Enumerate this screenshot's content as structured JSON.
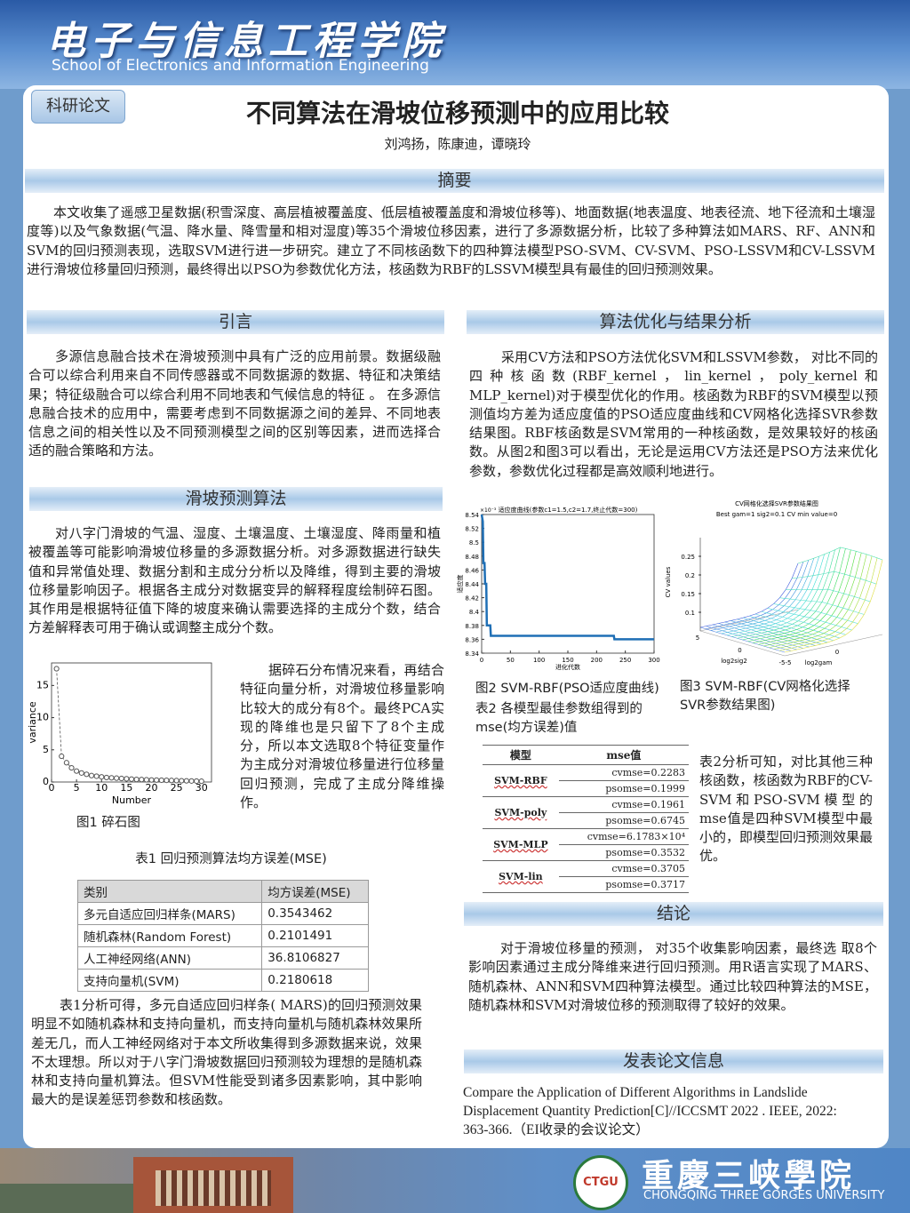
{
  "header": {
    "school_cn": "电子与信息工程学院",
    "school_en": "School of Electronics and Information Engineering"
  },
  "tag": "科研论文",
  "title": "不同算法在滑坡位移预测中的应用比较",
  "authors": "刘鸿扬，陈康迪，谭晓玲",
  "abstract": {
    "heading": "摘要",
    "text": "本文收集了遥感卫星数据(积雪深度、高层植被覆盖度、低层植被覆盖度和滑坡位移等)、地面数据(地表温度、地表径流、地下径流和土壤湿度等)以及气象数据(气温、降水量、降雪量和相对湿度)等35个滑坡位移因素，进行了多源数据分析，比较了多种算法如MARS、RF、ANN和SVM的回归预测表现，选取SVM进行进一步研究。建立了不同核函数下的四种算法模型PSO-SVM、CV-SVM、PSO-LSSVM和CV-LSSVM进行滑坡位移量回归预测，最终得出以PSO为参数优化方法，核函数为RBF的LSSVM模型具有最佳的回归预测效果。"
  },
  "intro": {
    "heading": "引言",
    "text": "多源信息融合技术在滑坡预测中具有广泛的应用前景。数据级融合可以综合利用来自不同传感器或不同数据源的数据、特征和决策结果；特征级融合可以综合利用不同地表和气候信息的特征 。 在多源信息融合技术的应用中，需要考虑到不同数据源之间的差异、不同地表信息之间的相关性以及不同预测模型之间的区别等因素，进而选择合适的融合策略和方法。"
  },
  "algorithm": {
    "heading": "滑坡预测算法",
    "text": "对八字门滑坡的气温、湿度、土壤温度、土壤湿度、降雨量和植被覆盖等可能影响滑坡位移量的多源数据分析。对多源数据进行缺失值和异常值处理、数据分割和主成分分析以及降维，得到主要的滑坡位移量影响因子。根据各主成分对数据变异的解释程度绘制碎石图。其作用是根据特征值下降的坡度来确认需要选择的主成分个数，结合方差解释表可用于确认或调整主成分个数。",
    "scree_text": "据碎石分布情况来看，再结合特征向量分析，对滑坡位移量影响比较大的成分有8个。最终PCA实现的降维也是只留下了8个主成分，所以本文选取8个特征变量作为主成分对滑坡位移量进行位移量回归预测，完成了主成分降维操作。",
    "figure1": {
      "type": "scatter",
      "x_label": "Number",
      "y_label": "variance",
      "x": [
        1,
        2,
        3,
        4,
        5,
        6,
        7,
        8,
        9,
        10,
        11,
        12,
        13,
        14,
        15,
        16,
        17,
        18,
        19,
        20,
        21,
        22,
        23,
        24,
        25,
        26,
        27,
        28,
        29,
        30
      ],
      "values": [
        17.6,
        4.0,
        3.0,
        2.2,
        1.7,
        1.4,
        1.2,
        1.0,
        0.9,
        0.8,
        0.7,
        0.65,
        0.6,
        0.55,
        0.5,
        0.45,
        0.4,
        0.38,
        0.35,
        0.32,
        0.3,
        0.28,
        0.26,
        0.24,
        0.22,
        0.2,
        0.18,
        0.16,
        0.14,
        0.12
      ],
      "xlim": [
        0,
        32
      ],
      "ylim": [
        0,
        18.5
      ],
      "xticks": [
        0,
        5,
        10,
        15,
        20,
        25,
        30
      ],
      "yticks": [
        0,
        5,
        10,
        15
      ],
      "color": "#555555"
    },
    "figure1_caption": "图1 碎石图",
    "table1_caption": "表1 回归预测算法均方误差(MSE)",
    "table1": {
      "header": [
        "类别",
        "均方误差(MSE)"
      ],
      "rows": [
        [
          "多元自适应回归样条(MARS)",
          0.3543462
        ],
        [
          "随机森林(Random Forest)",
          0.2101491
        ],
        [
          "人工神经网络(ANN)",
          36.8106827
        ],
        [
          "支持向量机(SVM)",
          0.2180618
        ]
      ]
    },
    "after_text": "表1分析可得，多元自适应回归样条( MARS)的回归预测效果明显不如随机森林和支持向量机，而支持向量机与随机森林效果所差无几，而人工神经网络对于本文所收集得到多源数据来说，效果不太理想。所以对于八字门滑坡数据回归预测较为理想的是随机森林和支持向量机算法。但SVM性能受到诸多因素影响，其中影响最大的是误差惩罚参数和核函数。"
  },
  "optimization": {
    "heading": "算法优化与结果分析",
    "text": "采用CV方法和PSO方法优化SVM和LSSVM参数， 对比不同的四种核函数(RBF_kernel，lin_kernel，poly_kernel和MLP_kernel)对于模型优化的作用。核函数为RBF的SVM模型以预测值均方差为适应度值的PSO适应度曲线和CV网格化选择SVR参数结果图。RBF核函数是SVM常用的一种核函数，是效果较好的核函数。从图2和图3可以看出，无论是运用CV方法还是PSO方法来优化参数，参数优化过程都是高效顺利地进行。",
    "figure2": {
      "type": "line",
      "title": "适应度曲线(参数c1=1.5,c2=1.7,终止代数=300)",
      "y_exponent": "×10⁻³",
      "x_label": "进化代数",
      "y_label": "适应度",
      "x": [
        0,
        2,
        3,
        5,
        6,
        8,
        9,
        15,
        16,
        20,
        230,
        231,
        300
      ],
      "values": [
        8.54,
        8.53,
        8.47,
        8.47,
        8.44,
        8.44,
        8.38,
        8.38,
        8.365,
        8.365,
        8.365,
        8.36,
        8.36
      ],
      "xlim": [
        0,
        300
      ],
      "ylim": [
        8.34,
        8.54
      ],
      "xticks": [
        0,
        50,
        100,
        150,
        200,
        250,
        300
      ],
      "yticks": [
        8.34,
        8.36,
        8.38,
        8.4,
        8.42,
        8.44,
        8.46,
        8.48,
        8.5,
        8.52,
        8.54
      ],
      "color": "#1f6fb5"
    },
    "figure3": {
      "title": "CV网格化选择SVR参数结果图",
      "subtitle": "Best gam=1 sig2=0.1 CV min value=0",
      "z_label": "CV values",
      "x_label": "log2sig2",
      "y_label": "log2gam",
      "zlim": [
        0.05,
        0.3
      ],
      "zticks": [
        0.1,
        0.15,
        0.2,
        0.25
      ],
      "xticks": [
        5,
        0,
        -5
      ],
      "yticks": [
        -5,
        0,
        5
      ]
    },
    "figure2_caption": "图2 SVM-RBF(PSO适应度曲线)",
    "figure3_caption": "图3  SVM-RBF(CV网格化选择SVR参数结果图)",
    "table2_caption": "表2 各模型最佳参数组得到的mse(均方误差)值",
    "table2": {
      "header": [
        "模型",
        "mse值"
      ],
      "rows": [
        [
          "SVM-RBF",
          "cvmse=0.2283",
          "psomse=0.1999"
        ],
        [
          "SVM-poly",
          "cvmse=0.1961",
          "psomse=0.6745"
        ],
        [
          "SVM-MLP",
          "cvmse=6.1783×10⁴",
          "psomse=0.3532"
        ],
        [
          "SVM-lin",
          "cvmse=0.3705",
          "psomse=0.3717"
        ]
      ]
    },
    "table2_text": "表2分析可知，对比其他三种核函数，核函数为RBF的CV-SVM和PSO-SVM模型的mse值是四种SVM模型中最小的，即模型回归预测效果最优。"
  },
  "conclusion": {
    "heading": "结论",
    "text": "对于滑坡位移量的预测， 对35个收集影响因素，最终选 取8个影响因素通过主成分降维来进行回归预测。用R语言实现了MARS、随机森林、ANN和SVM四种算法模型。通过比较四种算法的MSE，随机森林和SVM对滑坡位移的预测取得了较好的效果。"
  },
  "publication": {
    "heading": "发表论文信息",
    "text": "Compare the Application of Different Algorithms in Landslide Displacement Quantity Prediction[C]//ICCSMT 2022 . IEEE, 2022: 363-366.（EI收录的会议论文）"
  },
  "footer": {
    "logo_text": "CTGU",
    "university_cn": "重慶三峡學院",
    "university_en": "CHONGQING THREE GORGES UNIVERSITY"
  }
}
